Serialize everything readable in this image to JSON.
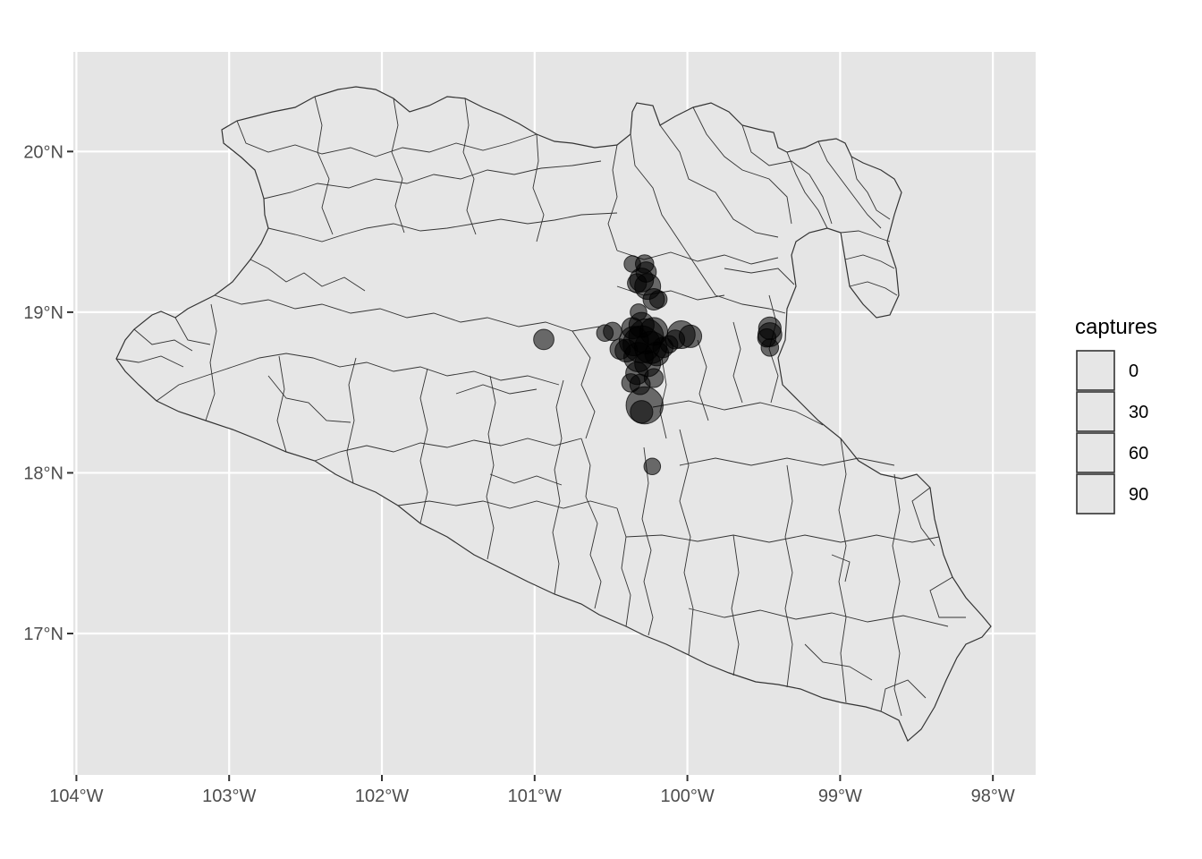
{
  "chart_data": {
    "type": "scatter",
    "subtype": "point map with municipal boundaries",
    "title": "",
    "xlabel": "",
    "ylabel": "",
    "xlim": [
      -104.02,
      -97.72
    ],
    "ylim": [
      16.12,
      20.62
    ],
    "x_ticks": [
      {
        "value": -104,
        "label": "104°W"
      },
      {
        "value": -103,
        "label": "103°W"
      },
      {
        "value": -102,
        "label": "102°W"
      },
      {
        "value": -101,
        "label": "101°W"
      },
      {
        "value": -100,
        "label": "100°W"
      },
      {
        "value": -99,
        "label": "99°W"
      },
      {
        "value": -98,
        "label": "98°W"
      }
    ],
    "y_ticks": [
      {
        "value": 17,
        "label": "17°N"
      },
      {
        "value": 18,
        "label": "18°N"
      },
      {
        "value": 19,
        "label": "19°N"
      },
      {
        "value": 20,
        "label": "20°N"
      }
    ],
    "grid": true,
    "panel_background": "#e5e5e5",
    "map_fill": "#e6e6e6",
    "map_border_color": "#333333",
    "point_color": "#000000",
    "point_alpha": 0.55,
    "legend": {
      "title": "captures",
      "position": "right",
      "entries": [
        "0",
        "30",
        "60",
        "90"
      ]
    },
    "points": [
      {
        "lon": -100.28,
        "lat": 19.3,
        "captures": 5
      },
      {
        "lon": -100.36,
        "lat": 19.3,
        "captures": 3
      },
      {
        "lon": -100.27,
        "lat": 19.25,
        "captures": 8
      },
      {
        "lon": -100.3,
        "lat": 19.2,
        "captures": 15
      },
      {
        "lon": -100.26,
        "lat": 19.16,
        "captures": 20
      },
      {
        "lon": -100.33,
        "lat": 19.18,
        "captures": 6
      },
      {
        "lon": -100.22,
        "lat": 19.08,
        "captures": 10
      },
      {
        "lon": -100.19,
        "lat": 19.08,
        "captures": 4
      },
      {
        "lon": -100.32,
        "lat": 19.0,
        "captures": 3
      },
      {
        "lon": -100.3,
        "lat": 18.92,
        "captures": 18
      },
      {
        "lon": -100.36,
        "lat": 18.9,
        "captures": 10
      },
      {
        "lon": -100.22,
        "lat": 18.88,
        "captures": 25
      },
      {
        "lon": -100.27,
        "lat": 18.85,
        "captures": 50
      },
      {
        "lon": -100.35,
        "lat": 18.82,
        "captures": 30
      },
      {
        "lon": -100.3,
        "lat": 18.8,
        "captures": 60
      },
      {
        "lon": -100.24,
        "lat": 18.78,
        "captures": 40
      },
      {
        "lon": -100.4,
        "lat": 18.76,
        "captures": 12
      },
      {
        "lon": -100.44,
        "lat": 18.77,
        "captures": 8
      },
      {
        "lon": -100.32,
        "lat": 18.72,
        "captures": 30
      },
      {
        "lon": -100.2,
        "lat": 18.74,
        "captures": 15
      },
      {
        "lon": -100.26,
        "lat": 18.68,
        "captures": 20
      },
      {
        "lon": -100.16,
        "lat": 18.78,
        "captures": 8
      },
      {
        "lon": -100.12,
        "lat": 18.8,
        "captures": 4
      },
      {
        "lon": -100.49,
        "lat": 18.88,
        "captures": 5
      },
      {
        "lon": -100.54,
        "lat": 18.87,
        "captures": 3
      },
      {
        "lon": -100.94,
        "lat": 18.83,
        "captures": 8
      },
      {
        "lon": -100.04,
        "lat": 18.86,
        "captures": 25
      },
      {
        "lon": -99.98,
        "lat": 18.85,
        "captures": 12
      },
      {
        "lon": -100.08,
        "lat": 18.83,
        "captures": 6
      },
      {
        "lon": -100.33,
        "lat": 18.62,
        "captures": 12
      },
      {
        "lon": -100.37,
        "lat": 18.56,
        "captures": 5
      },
      {
        "lon": -100.22,
        "lat": 18.59,
        "captures": 6
      },
      {
        "lon": -100.31,
        "lat": 18.55,
        "captures": 8
      },
      {
        "lon": -100.28,
        "lat": 18.42,
        "captures": 60
      },
      {
        "lon": -100.3,
        "lat": 18.38,
        "captures": 12
      },
      {
        "lon": -100.23,
        "lat": 18.04,
        "captures": 3
      },
      {
        "lon": -99.46,
        "lat": 18.9,
        "captures": 12
      },
      {
        "lon": -99.46,
        "lat": 18.86,
        "captures": 15
      },
      {
        "lon": -99.48,
        "lat": 18.84,
        "captures": 5
      },
      {
        "lon": -99.46,
        "lat": 18.78,
        "captures": 4
      }
    ]
  }
}
